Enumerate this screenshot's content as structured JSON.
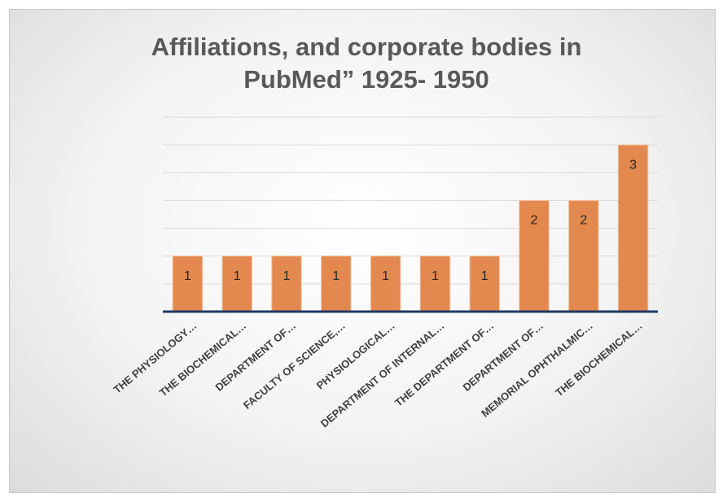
{
  "chart_data": {
    "type": "bar",
    "title": "Affiliations, and corporate bodies in PubMed” 1925- 1950",
    "categories": [
      "THE PHYSIOLOGY…",
      "THE BIOCHEMICAL…",
      "DEPARTMENT OF…",
      "FACULTY OF SCIENCE,…",
      "PHYSIOLOGICAL…",
      "DEPARTMENT OF INTERNAL…",
      "THE DEPARTMENT OF…",
      "DEPARTMENT OF…",
      "MEMORIAL OPHTHALMIC…",
      "THE BIOCHEMICAL…"
    ],
    "values": [
      1,
      1,
      1,
      1,
      1,
      1,
      1,
      2,
      2,
      3
    ],
    "color": "#e3894f",
    "ylim": [
      0,
      3.5
    ],
    "yticks": [
      0,
      0.5,
      1,
      1.5,
      2,
      2.5,
      3,
      3.5
    ],
    "grid": true
  }
}
